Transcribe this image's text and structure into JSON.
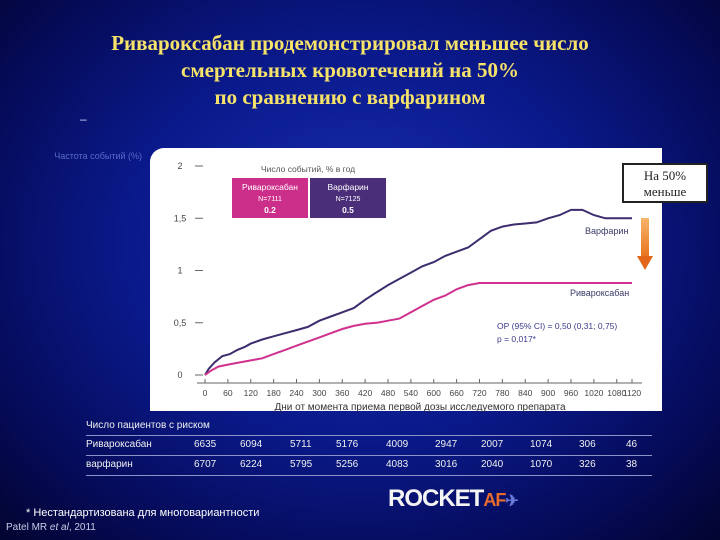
{
  "title": {
    "line1": "Ривароксабан продемонстрировал меньшее число",
    "line2": "смертельных кровотечений на 50%",
    "line3": "по сравнению с варфарином"
  },
  "dash": "–",
  "callout": {
    "line1": "На 50%",
    "line2": "меньше"
  },
  "chart_data": {
    "type": "line",
    "ylabel_faint": "Частота событий (%)",
    "x_ticks": [
      0,
      60,
      120,
      180,
      240,
      300,
      360,
      420,
      480,
      540,
      600,
      660,
      720,
      780,
      840,
      900,
      960,
      1020,
      1080,
      1120
    ],
    "y_ticks": [
      0,
      0.5,
      1,
      1.5,
      2
    ],
    "y_tick_labels": [
      "0",
      "0,5",
      "1",
      "1,5",
      "2"
    ],
    "xlim": [
      0,
      1120
    ],
    "ylim": [
      0,
      2
    ],
    "xlabel": "Дни от момента приема первой дозы исследуемого препарата",
    "legend_header": "Число событий, % в год",
    "legend": [
      {
        "name": "Ривароксабан",
        "n": "N=7111",
        "rate": "0.2",
        "color": "#cc2f8a"
      },
      {
        "name": "Варфарин",
        "n": "N=7125",
        "rate": "0.5",
        "color": "#4a2e7a"
      }
    ],
    "series": [
      {
        "name": "Варфарин",
        "color": "#3d2d6e",
        "points": [
          [
            0,
            0
          ],
          [
            10,
            0.06
          ],
          [
            25,
            0.12
          ],
          [
            45,
            0.18
          ],
          [
            65,
            0.2
          ],
          [
            85,
            0.24
          ],
          [
            105,
            0.27
          ],
          [
            120,
            0.3
          ],
          [
            150,
            0.34
          ],
          [
            180,
            0.37
          ],
          [
            210,
            0.4
          ],
          [
            240,
            0.43
          ],
          [
            270,
            0.46
          ],
          [
            300,
            0.52
          ],
          [
            330,
            0.56
          ],
          [
            360,
            0.6
          ],
          [
            390,
            0.64
          ],
          [
            420,
            0.72
          ],
          [
            445,
            0.78
          ],
          [
            480,
            0.86
          ],
          [
            510,
            0.92
          ],
          [
            540,
            0.98
          ],
          [
            570,
            1.04
          ],
          [
            600,
            1.08
          ],
          [
            630,
            1.14
          ],
          [
            660,
            1.18
          ],
          [
            690,
            1.22
          ],
          [
            720,
            1.3
          ],
          [
            750,
            1.38
          ],
          [
            780,
            1.42
          ],
          [
            810,
            1.44
          ],
          [
            840,
            1.45
          ],
          [
            870,
            1.46
          ],
          [
            900,
            1.5
          ],
          [
            930,
            1.53
          ],
          [
            960,
            1.58
          ],
          [
            990,
            1.58
          ],
          [
            1020,
            1.53
          ],
          [
            1050,
            1.5
          ],
          [
            1080,
            1.5
          ],
          [
            1120,
            1.5
          ]
        ]
      },
      {
        "name": "Ривароксабан",
        "color": "#d0308e",
        "points": [
          [
            0,
            0
          ],
          [
            15,
            0.04
          ],
          [
            35,
            0.08
          ],
          [
            60,
            0.1
          ],
          [
            90,
            0.12
          ],
          [
            120,
            0.14
          ],
          [
            150,
            0.16
          ],
          [
            180,
            0.2
          ],
          [
            210,
            0.24
          ],
          [
            240,
            0.28
          ],
          [
            270,
            0.32
          ],
          [
            300,
            0.36
          ],
          [
            330,
            0.4
          ],
          [
            360,
            0.44
          ],
          [
            390,
            0.47
          ],
          [
            420,
            0.49
          ],
          [
            450,
            0.5
          ],
          [
            480,
            0.52
          ],
          [
            510,
            0.54
          ],
          [
            540,
            0.6
          ],
          [
            570,
            0.66
          ],
          [
            600,
            0.72
          ],
          [
            630,
            0.76
          ],
          [
            660,
            0.82
          ],
          [
            690,
            0.86
          ],
          [
            720,
            0.88
          ],
          [
            750,
            0.88
          ],
          [
            780,
            0.88
          ],
          [
            840,
            0.88
          ],
          [
            900,
            0.88
          ],
          [
            960,
            0.88
          ],
          [
            1020,
            0.88
          ],
          [
            1080,
            0.88
          ],
          [
            1120,
            0.88
          ]
        ]
      }
    ],
    "series_labels": {
      "warfarin": "Варфарин",
      "rivaroxaban": "Ривароксабан"
    },
    "annotation": {
      "line1": "ОР (95% CI) = 0,50 (0,31; 0,75)",
      "line2": "p = 0,017*"
    }
  },
  "risk_table": {
    "title": "Число пациентов с риском",
    "rows": [
      {
        "name": "Ривароксабан",
        "values": [
          "6635",
          "6094",
          "5711",
          "5176",
          "4009",
          "2947",
          "2007",
          "1074",
          "306",
          "46"
        ]
      },
      {
        "name": "варфарин",
        "values": [
          "6707",
          "6224",
          "5795",
          "5256",
          "4083",
          "3016",
          "2040",
          "1070",
          "326",
          "38"
        ]
      }
    ]
  },
  "footnote": "* Нестандартизована для многовариантности",
  "reference": {
    "author": "Patel MR ",
    "etal": "et al",
    "year": ", 2011"
  },
  "logo": {
    "main": "ROCKET",
    "suffix": "AF",
    "mark": "✈"
  }
}
